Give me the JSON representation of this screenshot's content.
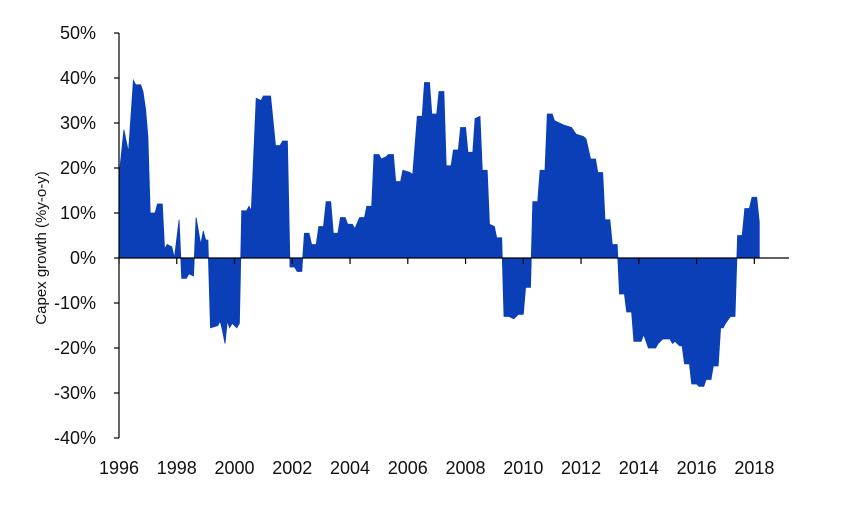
{
  "chart_data": {
    "type": "area",
    "title": "",
    "xlabel": "",
    "ylabel": "Capex growth (%y-o-y)",
    "ylim": [
      -40,
      50
    ],
    "xlim": [
      1996,
      2019.2
    ],
    "grid": false,
    "legend": "none",
    "fill_color": "#0a3fb8",
    "y_ticks": [
      50,
      40,
      30,
      20,
      10,
      0,
      -10,
      -20,
      -30,
      -40
    ],
    "y_tick_labels": [
      "50%",
      "40%",
      "30%",
      "20%",
      "10%",
      "0%",
      "-10%",
      "-20%",
      "-30%",
      "-40%"
    ],
    "x_ticks": [
      1996,
      1998,
      2000,
      2002,
      2004,
      2006,
      2008,
      2010,
      2012,
      2014,
      2016,
      2018
    ],
    "x_tick_labels": [
      "1996",
      "1998",
      "2000",
      "2002",
      "2004",
      "2006",
      "2008",
      "2010",
      "2012",
      "2014",
      "2016",
      "2018"
    ],
    "series": [
      {
        "points": [
          [
            1996.0,
            18
          ],
          [
            1996.17,
            28.5
          ],
          [
            1996.33,
            23.5
          ],
          [
            1996.5,
            39.5
          ],
          [
            1996.58,
            38.5
          ],
          [
            1996.75,
            38.5
          ],
          [
            1996.83,
            37
          ],
          [
            1996.92,
            33
          ],
          [
            1997.0,
            27
          ],
          [
            1997.08,
            10
          ],
          [
            1997.25,
            10
          ],
          [
            1997.33,
            12
          ],
          [
            1997.5,
            12
          ],
          [
            1997.58,
            2
          ],
          [
            1997.67,
            3
          ],
          [
            1997.83,
            2.5
          ],
          [
            1997.92,
            0
          ],
          [
            1998.08,
            8.5
          ],
          [
            1998.17,
            -4.5
          ],
          [
            1998.33,
            -4.5
          ],
          [
            1998.42,
            -3.5
          ],
          [
            1998.58,
            -4
          ],
          [
            1998.67,
            9
          ],
          [
            1998.83,
            3
          ],
          [
            1998.92,
            6
          ],
          [
            1999.0,
            4
          ],
          [
            1999.08,
            4
          ],
          [
            1999.17,
            -15.5
          ],
          [
            1999.42,
            -15
          ],
          [
            1999.5,
            -14
          ],
          [
            1999.58,
            -16
          ],
          [
            1999.67,
            -19
          ],
          [
            1999.75,
            -14
          ],
          [
            1999.83,
            -15.5
          ],
          [
            1999.92,
            -14.5
          ],
          [
            2000.08,
            -15.5
          ],
          [
            2000.17,
            -14.5
          ],
          [
            2000.25,
            10.5
          ],
          [
            2000.42,
            10.5
          ],
          [
            2000.5,
            11.5
          ],
          [
            2000.58,
            10.5
          ],
          [
            2000.75,
            35.5
          ],
          [
            2000.92,
            35
          ],
          [
            2001.0,
            36
          ],
          [
            2001.25,
            36
          ],
          [
            2001.42,
            25
          ],
          [
            2001.58,
            25
          ],
          [
            2001.67,
            26
          ],
          [
            2001.83,
            26
          ],
          [
            2001.92,
            -2
          ],
          [
            2002.08,
            -2
          ],
          [
            2002.17,
            -3
          ],
          [
            2002.33,
            -3
          ],
          [
            2002.42,
            5.5
          ],
          [
            2002.58,
            5.5
          ],
          [
            2002.67,
            3
          ],
          [
            2002.83,
            3
          ],
          [
            2002.92,
            7
          ],
          [
            2003.08,
            7
          ],
          [
            2003.17,
            12.5
          ],
          [
            2003.33,
            12.5
          ],
          [
            2003.42,
            5.5
          ],
          [
            2003.58,
            5.5
          ],
          [
            2003.67,
            9
          ],
          [
            2003.83,
            9
          ],
          [
            2003.92,
            7.5
          ],
          [
            2004.08,
            7.5
          ],
          [
            2004.17,
            6.5
          ],
          [
            2004.33,
            9
          ],
          [
            2004.5,
            9
          ],
          [
            2004.58,
            11.5
          ],
          [
            2004.75,
            11.5
          ],
          [
            2004.83,
            23
          ],
          [
            2005.0,
            23
          ],
          [
            2005.08,
            22
          ],
          [
            2005.25,
            22.5
          ],
          [
            2005.33,
            23
          ],
          [
            2005.5,
            23
          ],
          [
            2005.58,
            17
          ],
          [
            2005.75,
            17
          ],
          [
            2005.83,
            19.5
          ],
          [
            2006.08,
            19
          ],
          [
            2006.17,
            18.5
          ],
          [
            2006.33,
            31.5
          ],
          [
            2006.5,
            31.5
          ],
          [
            2006.58,
            39
          ],
          [
            2006.75,
            39
          ],
          [
            2006.83,
            32
          ],
          [
            2007.0,
            32
          ],
          [
            2007.08,
            37
          ],
          [
            2007.25,
            37
          ],
          [
            2007.33,
            20.5
          ],
          [
            2007.5,
            20.5
          ],
          [
            2007.58,
            24
          ],
          [
            2007.75,
            24
          ],
          [
            2007.83,
            29
          ],
          [
            2008.0,
            29
          ],
          [
            2008.08,
            23.5
          ],
          [
            2008.25,
            23.5
          ],
          [
            2008.33,
            31
          ],
          [
            2008.5,
            31.5
          ],
          [
            2008.58,
            19.5
          ],
          [
            2008.75,
            19.5
          ],
          [
            2008.83,
            7.5
          ],
          [
            2009.0,
            7
          ],
          [
            2009.08,
            4.5
          ],
          [
            2009.25,
            4.5
          ],
          [
            2009.33,
            -13
          ],
          [
            2009.5,
            -13
          ],
          [
            2009.67,
            -13.5
          ],
          [
            2009.83,
            -12.5
          ],
          [
            2010.0,
            -12.5
          ],
          [
            2010.08,
            -6.5
          ],
          [
            2010.25,
            -6.5
          ],
          [
            2010.33,
            12.5
          ],
          [
            2010.5,
            12.5
          ],
          [
            2010.58,
            19.5
          ],
          [
            2010.75,
            19.5
          ],
          [
            2010.83,
            32
          ],
          [
            2011.0,
            32
          ],
          [
            2011.08,
            30.5
          ],
          [
            2011.25,
            30
          ],
          [
            2011.42,
            29.5
          ],
          [
            2011.67,
            29
          ],
          [
            2011.83,
            27.5
          ],
          [
            2012.08,
            27
          ],
          [
            2012.17,
            26.5
          ],
          [
            2012.33,
            22
          ],
          [
            2012.5,
            22
          ],
          [
            2012.58,
            19
          ],
          [
            2012.75,
            19
          ],
          [
            2012.83,
            8.5
          ],
          [
            2013.0,
            8.5
          ],
          [
            2013.08,
            3
          ],
          [
            2013.25,
            3
          ],
          [
            2013.33,
            -8
          ],
          [
            2013.5,
            -8
          ],
          [
            2013.58,
            -12
          ],
          [
            2013.75,
            -12
          ],
          [
            2013.83,
            -18.5
          ],
          [
            2014.08,
            -18.5
          ],
          [
            2014.17,
            -17
          ],
          [
            2014.33,
            -20
          ],
          [
            2014.58,
            -20
          ],
          [
            2014.67,
            -19
          ],
          [
            2014.83,
            -18
          ],
          [
            2015.08,
            -18
          ],
          [
            2015.17,
            -19
          ],
          [
            2015.25,
            -18.5
          ],
          [
            2015.42,
            -19.5
          ],
          [
            2015.5,
            -19.5
          ],
          [
            2015.58,
            -23.5
          ],
          [
            2015.75,
            -23.5
          ],
          [
            2015.83,
            -28
          ],
          [
            2016.0,
            -28
          ],
          [
            2016.08,
            -28.5
          ],
          [
            2016.25,
            -28.5
          ],
          [
            2016.33,
            -27
          ],
          [
            2016.5,
            -27
          ],
          [
            2016.58,
            -24
          ],
          [
            2016.75,
            -24
          ],
          [
            2016.83,
            -15.5
          ],
          [
            2016.92,
            -15.5
          ],
          [
            2017.0,
            -14.5
          ],
          [
            2017.17,
            -13
          ],
          [
            2017.33,
            -13
          ],
          [
            2017.42,
            5
          ],
          [
            2017.58,
            5
          ],
          [
            2017.67,
            11
          ],
          [
            2017.83,
            11
          ],
          [
            2017.92,
            13.5
          ],
          [
            2018.08,
            13.5
          ],
          [
            2018.17,
            8
          ]
        ]
      }
    ]
  }
}
